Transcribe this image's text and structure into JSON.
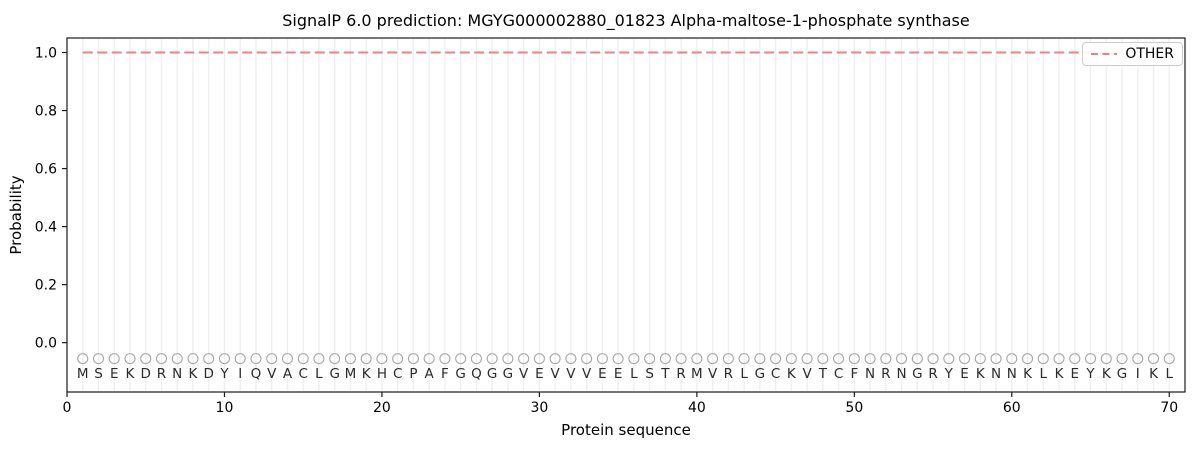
{
  "chart_data": {
    "type": "line",
    "title": "SignalP 6.0 prediction: MGYG000002880_01823 Alpha-maltose-1-phosphate synthase",
    "xlabel": "Protein sequence",
    "ylabel": "Probability",
    "xlim": [
      0,
      71
    ],
    "ylim": [
      -0.17,
      1.05
    ],
    "xticks": [
      0,
      10,
      20,
      30,
      40,
      50,
      60,
      70
    ],
    "yticks": [
      0.0,
      0.2,
      0.4,
      0.6,
      0.8,
      1.0
    ],
    "grid": "vertical line at every residue position, no horizontal gridlines",
    "legend": {
      "position": "upper right",
      "entries": [
        {
          "label": "OTHER",
          "color": "#f08080",
          "style": "dashed"
        }
      ]
    },
    "series": [
      {
        "name": "OTHER",
        "style": "dashed",
        "color": "#f08080",
        "x": [
          1,
          2,
          3,
          4,
          5,
          6,
          7,
          8,
          9,
          10,
          11,
          12,
          13,
          14,
          15,
          16,
          17,
          18,
          19,
          20,
          21,
          22,
          23,
          24,
          25,
          26,
          27,
          28,
          29,
          30,
          31,
          32,
          33,
          34,
          35,
          36,
          37,
          38,
          39,
          40,
          41,
          42,
          43,
          44,
          45,
          46,
          47,
          48,
          49,
          50,
          51,
          52,
          53,
          54,
          55,
          56,
          57,
          58,
          59,
          60,
          61,
          62,
          63,
          64,
          65,
          66,
          67,
          68,
          69,
          70
        ],
        "values": [
          1.0,
          1.0,
          1.0,
          1.0,
          1.0,
          1.0,
          1.0,
          1.0,
          1.0,
          1.0,
          1.0,
          1.0,
          1.0,
          1.0,
          1.0,
          1.0,
          1.0,
          1.0,
          1.0,
          1.0,
          1.0,
          1.0,
          1.0,
          1.0,
          1.0,
          1.0,
          1.0,
          1.0,
          1.0,
          1.0,
          1.0,
          1.0,
          1.0,
          1.0,
          1.0,
          1.0,
          1.0,
          1.0,
          1.0,
          1.0,
          1.0,
          1.0,
          1.0,
          1.0,
          1.0,
          1.0,
          1.0,
          1.0,
          1.0,
          1.0,
          1.0,
          1.0,
          1.0,
          1.0,
          1.0,
          1.0,
          1.0,
          1.0,
          1.0,
          1.0,
          1.0,
          1.0,
          1.0,
          1.0,
          1.0,
          1.0,
          1.0,
          1.0,
          1.0,
          1.0
        ]
      }
    ],
    "n_residues": 70,
    "sequence": "MSEKDRNKDYIQVACLGMKHCPAFGQGGVEVVVEELSTRMVRLGCKVTCFNRNGRYEKNNKLKEYKGIKL",
    "sequence_start_position": 1,
    "marker_row_y": -0.055,
    "letter_row_y": -0.105,
    "style": {
      "background": "#ffffff",
      "grid_color": "#efefef",
      "marker_color": "#a6a6a6",
      "letter_color": "#2b2b2b",
      "spine_color": "#1a1a1a",
      "tick_label_color": "#000000",
      "legend_border_color": "#cccccc"
    }
  }
}
